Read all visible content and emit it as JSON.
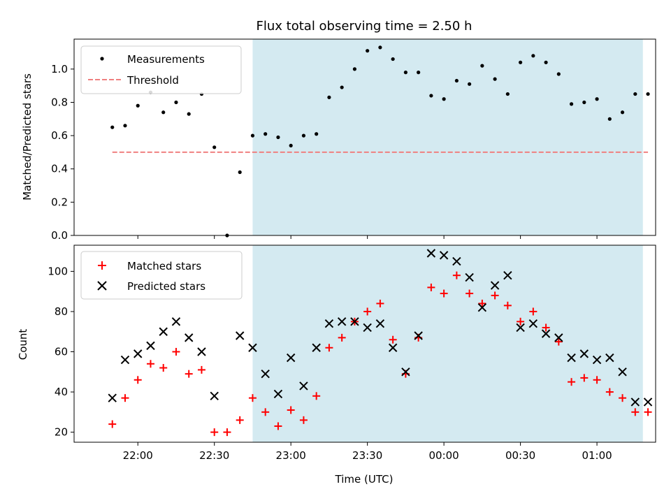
{
  "chart_data": [
    {
      "type": "scatter",
      "title": "Flux total observing time = 2.50 h",
      "xlabel": "",
      "ylabel": "Matched/Predicted stars",
      "ylim": [
        0,
        1.18
      ],
      "yticks": [
        "0.0",
        "0.2",
        "0.4",
        "0.6",
        "0.8",
        "1.0"
      ],
      "shaded_interval": [
        "22:45",
        "01:18"
      ],
      "shade_color": "#d4eaf1",
      "legend_position": "top-left",
      "series": [
        {
          "name": "Measurements",
          "marker": "dot",
          "color": "#000000",
          "x": [
            "21:50",
            "21:55",
            "22:00",
            "22:05",
            "22:10",
            "22:15",
            "22:20",
            "22:25",
            "22:30",
            "22:35",
            "22:40",
            "22:45",
            "22:50",
            "22:55",
            "23:00",
            "23:05",
            "23:10",
            "23:15",
            "23:20",
            "23:25",
            "23:30",
            "23:35",
            "23:40",
            "23:45",
            "23:50",
            "23:55",
            "00:00",
            "00:05",
            "00:10",
            "00:15",
            "00:20",
            "00:25",
            "00:30",
            "00:35",
            "00:40",
            "00:45",
            "00:50",
            "00:55",
            "01:00",
            "01:05",
            "01:10",
            "01:15",
            "01:20"
          ],
          "y": [
            0.65,
            0.66,
            0.78,
            0.86,
            0.74,
            0.8,
            0.73,
            0.85,
            0.53,
            0.0,
            0.38,
            0.6,
            0.61,
            0.59,
            0.54,
            0.6,
            0.61,
            0.83,
            0.89,
            1.0,
            1.11,
            1.13,
            1.06,
            0.98,
            0.98,
            0.84,
            0.82,
            0.93,
            0.91,
            1.02,
            0.94,
            0.85,
            1.04,
            1.08,
            1.04,
            0.97,
            0.79,
            0.8,
            0.82,
            0.7,
            0.74,
            0.85,
            0.85
          ]
        },
        {
          "name": "Threshold",
          "style": "dashed",
          "color": "#f08080",
          "x": [
            "21:50",
            "01:20"
          ],
          "y": [
            0.5,
            0.5
          ]
        }
      ]
    },
    {
      "type": "scatter",
      "title": "",
      "xlabel": "Time (UTC)",
      "ylabel": "Count",
      "ylim": [
        15,
        113
      ],
      "yticks": [
        "20",
        "40",
        "60",
        "80",
        "100"
      ],
      "xticks": [
        "22:00",
        "22:30",
        "23:00",
        "23:30",
        "00:00",
        "00:30",
        "01:00"
      ],
      "shaded_interval": [
        "22:45",
        "01:18"
      ],
      "shade_color": "#d4eaf1",
      "legend_position": "top-left",
      "series": [
        {
          "name": "Matched stars",
          "marker": "plus",
          "color": "#ff0000",
          "x": [
            "21:50",
            "21:55",
            "22:00",
            "22:05",
            "22:10",
            "22:15",
            "22:20",
            "22:25",
            "22:30",
            "22:35",
            "22:40",
            "22:45",
            "22:50",
            "22:55",
            "23:00",
            "23:05",
            "23:10",
            "23:15",
            "23:20",
            "23:25",
            "23:30",
            "23:35",
            "23:40",
            "23:45",
            "23:50",
            "23:55",
            "00:00",
            "00:05",
            "00:10",
            "00:15",
            "00:20",
            "00:25",
            "00:30",
            "00:35",
            "00:40",
            "00:45",
            "00:50",
            "00:55",
            "01:00",
            "01:05",
            "01:10",
            "01:15",
            "01:20"
          ],
          "y": [
            24,
            37,
            46,
            54,
            52,
            60,
            49,
            51,
            20,
            20,
            26,
            37,
            30,
            23,
            31,
            26,
            38,
            62,
            67,
            75,
            80,
            84,
            66,
            49,
            67,
            92,
            89,
            98,
            89,
            84,
            88,
            83,
            75,
            80,
            72,
            65,
            45,
            47,
            46,
            40,
            37,
            30,
            30
          ]
        },
        {
          "name": "Predicted stars",
          "marker": "x",
          "color": "#000000",
          "x": [
            "21:50",
            "21:55",
            "22:00",
            "22:05",
            "22:10",
            "22:15",
            "22:20",
            "22:25",
            "22:30",
            "22:35",
            "22:40",
            "22:45",
            "22:50",
            "22:55",
            "23:00",
            "23:05",
            "23:10",
            "23:15",
            "23:20",
            "23:25",
            "23:30",
            "23:35",
            "23:40",
            "23:45",
            "23:50",
            "23:55",
            "00:00",
            "00:05",
            "00:10",
            "00:15",
            "00:20",
            "00:25",
            "00:30",
            "00:35",
            "00:40",
            "00:45",
            "00:50",
            "00:55",
            "01:00",
            "01:05",
            "01:10",
            "01:15",
            "01:20"
          ],
          "y": [
            37,
            56,
            59,
            63,
            70,
            75,
            67,
            60,
            38,
            null,
            68,
            62,
            49,
            39,
            57,
            43,
            62,
            74,
            75,
            75,
            72,
            74,
            62,
            50,
            68,
            109,
            108,
            105,
            97,
            82,
            93,
            98,
            72,
            74,
            69,
            67,
            57,
            59,
            56,
            57,
            50,
            35,
            35
          ]
        }
      ]
    }
  ]
}
